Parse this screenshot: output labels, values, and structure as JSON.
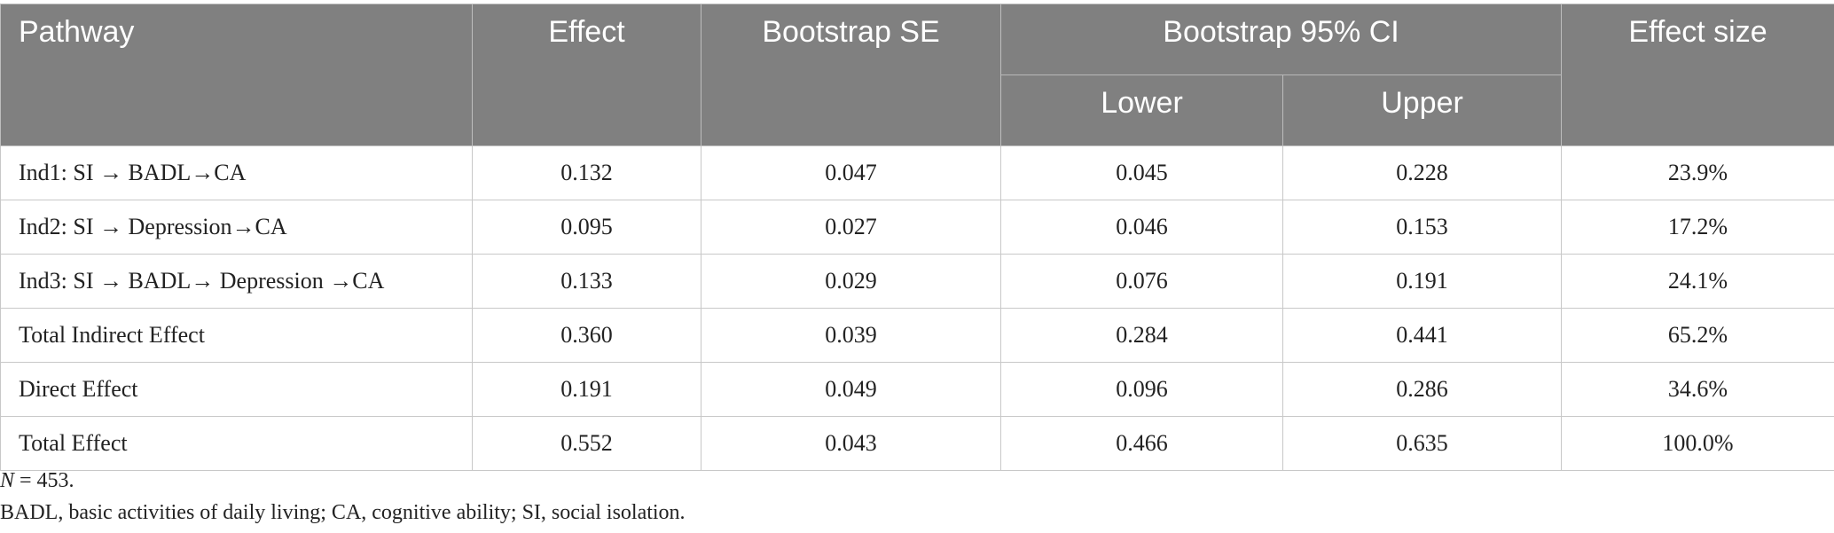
{
  "table": {
    "headers": {
      "pathway": "Pathway",
      "effect": "Effect",
      "bootstrap_se": "Bootstrap SE",
      "ci_group": "Bootstrap 95% CI",
      "lower": "Lower",
      "upper": "Upper",
      "effect_size": "Effect size"
    },
    "rows": [
      {
        "pathway": "Ind1: SI → BADL→CA",
        "effect": "0.132",
        "se": "0.047",
        "lower": "0.045",
        "upper": "0.228",
        "effect_size": "23.9%"
      },
      {
        "pathway": "Ind2: SI → Depression→CA",
        "effect": "0.095",
        "se": "0.027",
        "lower": "0.046",
        "upper": "0.153",
        "effect_size": "17.2%"
      },
      {
        "pathway": "Ind3: SI → BADL→ Depression →CA",
        "effect": "0.133",
        "se": "0.029",
        "lower": "0.076",
        "upper": "0.191",
        "effect_size": "24.1%"
      },
      {
        "pathway": "Total Indirect Effect",
        "effect": "0.360",
        "se": "0.039",
        "lower": "0.284",
        "upper": "0.441",
        "effect_size": "65.2%"
      },
      {
        "pathway": "Direct Effect",
        "effect": "0.191",
        "se": "0.049",
        "lower": "0.096",
        "upper": "0.286",
        "effect_size": "34.6%"
      },
      {
        "pathway": "Total Effect",
        "effect": "0.552",
        "se": "0.043",
        "lower": "0.466",
        "upper": "0.635",
        "effect_size": "100.0%"
      }
    ]
  },
  "notes": {
    "n_label": "N",
    "n_value": " = 453.",
    "abbreviations": "BADL, basic activities of daily living; CA, cognitive ability; SI, social isolation."
  }
}
